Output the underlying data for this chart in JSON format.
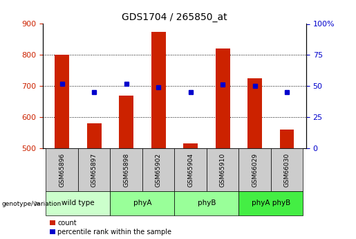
{
  "title": "GDS1704 / 265850_at",
  "samples": [
    "GSM65896",
    "GSM65897",
    "GSM65898",
    "GSM65902",
    "GSM65904",
    "GSM65910",
    "GSM66029",
    "GSM66030"
  ],
  "count_values": [
    800,
    580,
    670,
    875,
    515,
    820,
    725,
    560
  ],
  "percentile_values": [
    52,
    45,
    52,
    49,
    45,
    51,
    50,
    45
  ],
  "groups": [
    {
      "label": "wild type",
      "start": 0,
      "end": 2,
      "color": "#ccffcc"
    },
    {
      "label": "phyA",
      "start": 2,
      "end": 4,
      "color": "#99ff99"
    },
    {
      "label": "phyB",
      "start": 4,
      "end": 6,
      "color": "#99ff99"
    },
    {
      "label": "phyA phyB",
      "start": 6,
      "end": 8,
      "color": "#44ee44"
    }
  ],
  "ylim_left": [
    500,
    900
  ],
  "ylim_right": [
    0,
    100
  ],
  "yticks_left": [
    500,
    600,
    700,
    800,
    900
  ],
  "yticks_right": [
    0,
    25,
    50,
    75,
    100
  ],
  "bar_color": "#cc2200",
  "dot_color": "#0000cc",
  "bar_width": 0.45,
  "bar_bottom": 500,
  "gsm_row_color": "#cccccc",
  "grid_ticks": [
    600,
    700,
    800
  ]
}
